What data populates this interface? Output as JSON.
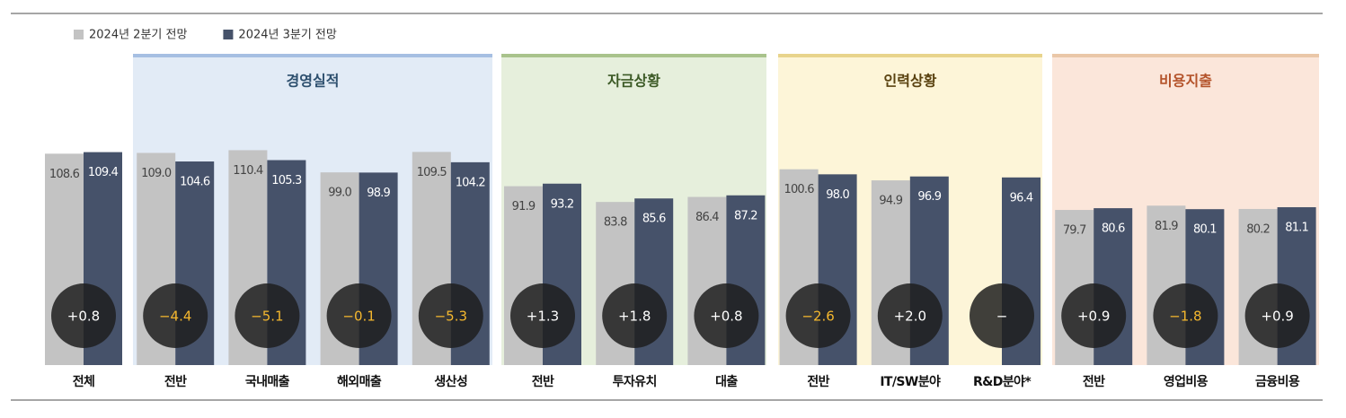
{
  "chart_data": {
    "type": "bar",
    "groups": [
      "경영실적",
      "자금상황",
      "인력상황",
      "비용지출"
    ],
    "categories": [
      "전체",
      "전반",
      "국내매출",
      "해외매출",
      "생산성",
      "전반",
      "투자유치",
      "대출",
      "전반",
      "IT/SW분야",
      "R&D분야*",
      "전반",
      "영업비용",
      "금융비용"
    ],
    "series": [
      {
        "name": "2024년 2분기 전망",
        "color": "#c3c3c3",
        "values": [
          108.6,
          109.0,
          110.4,
          99.0,
          109.5,
          91.9,
          83.8,
          86.4,
          100.6,
          94.9,
          null,
          79.7,
          81.9,
          80.2
        ],
        "value_labels": [
          "108.6",
          "109.0",
          "110.4",
          "99.0",
          "109.5",
          "91.9",
          "83.8",
          "86.4",
          "100.6",
          "94.9",
          null,
          "79.7",
          "81.9",
          "80.2"
        ]
      },
      {
        "name": "2024년 3분기 전망",
        "color": "#46526a",
        "values": [
          109.4,
          104.6,
          105.3,
          98.9,
          104.2,
          93.2,
          85.6,
          87.2,
          98.0,
          96.9,
          96.4,
          80.6,
          80.1,
          81.1
        ],
        "value_labels": [
          "109.4",
          "104.6",
          "105.3",
          "98.9",
          "104.2",
          "93.2",
          "85.6",
          "87.2",
          "98.0",
          "96.9",
          "96.4",
          "80.6",
          "80.1",
          "81.1"
        ]
      }
    ],
    "changes": [
      0.8,
      -4.4,
      -5.1,
      -0.1,
      -5.3,
      1.3,
      1.8,
      0.8,
      -2.6,
      2.0,
      null,
      0.9,
      -1.8,
      0.9
    ],
    "change_labels": [
      "+0.8",
      "−4.4",
      "−5.1",
      "−0.1",
      "−5.3",
      "+1.3",
      "+1.8",
      "+0.8",
      "−2.6",
      "+2.0",
      "−",
      "+0.9",
      "−1.8",
      "+0.9"
    ]
  }
}
